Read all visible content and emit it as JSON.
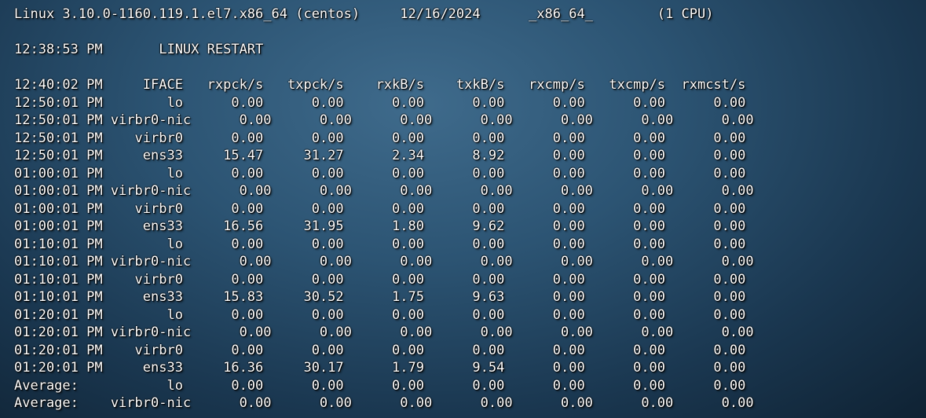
{
  "terminal": {
    "header": "Linux 3.10.0-1160.119.1.el7.x86_64 (centos)     12/16/2024      _x86_64_        (1 CPU)",
    "restart": "12:38:53 PM       LINUX RESTART",
    "column_header": "12:40:02 PM     IFACE   rxpck/s   txpck/s    rxkB/s    txkB/s   rxcmp/s   txcmp/s  rxmcst/s",
    "rows": [
      "12:50:01 PM        lo      0.00      0.00      0.00      0.00      0.00      0.00      0.00",
      "12:50:01 PM virbr0-nic      0.00      0.00      0.00      0.00      0.00      0.00      0.00",
      "12:50:01 PM    virbr0      0.00      0.00      0.00      0.00      0.00      0.00      0.00",
      "12:50:01 PM     ens33     15.47     31.27      2.34      8.92      0.00      0.00      0.00",
      "01:00:01 PM        lo      0.00      0.00      0.00      0.00      0.00      0.00      0.00",
      "01:00:01 PM virbr0-nic      0.00      0.00      0.00      0.00      0.00      0.00      0.00",
      "01:00:01 PM    virbr0      0.00      0.00      0.00      0.00      0.00      0.00      0.00",
      "01:00:01 PM     ens33     16.56     31.95      1.80      9.62      0.00      0.00      0.00",
      "01:10:01 PM        lo      0.00      0.00      0.00      0.00      0.00      0.00      0.00",
      "01:10:01 PM virbr0-nic      0.00      0.00      0.00      0.00      0.00      0.00      0.00",
      "01:10:01 PM    virbr0      0.00      0.00      0.00      0.00      0.00      0.00      0.00",
      "01:10:01 PM     ens33     15.83     30.52      1.75      9.63      0.00      0.00      0.00",
      "01:20:01 PM        lo      0.00      0.00      0.00      0.00      0.00      0.00      0.00",
      "01:20:01 PM virbr0-nic      0.00      0.00      0.00      0.00      0.00      0.00      0.00",
      "01:20:01 PM    virbr0      0.00      0.00      0.00      0.00      0.00      0.00      0.00",
      "01:20:01 PM     ens33     16.36     30.17      1.79      9.54      0.00      0.00      0.00",
      "Average:           lo      0.00      0.00      0.00      0.00      0.00      0.00      0.00",
      "Average:    virbr0-nic      0.00      0.00      0.00      0.00      0.00      0.00      0.00"
    ]
  }
}
